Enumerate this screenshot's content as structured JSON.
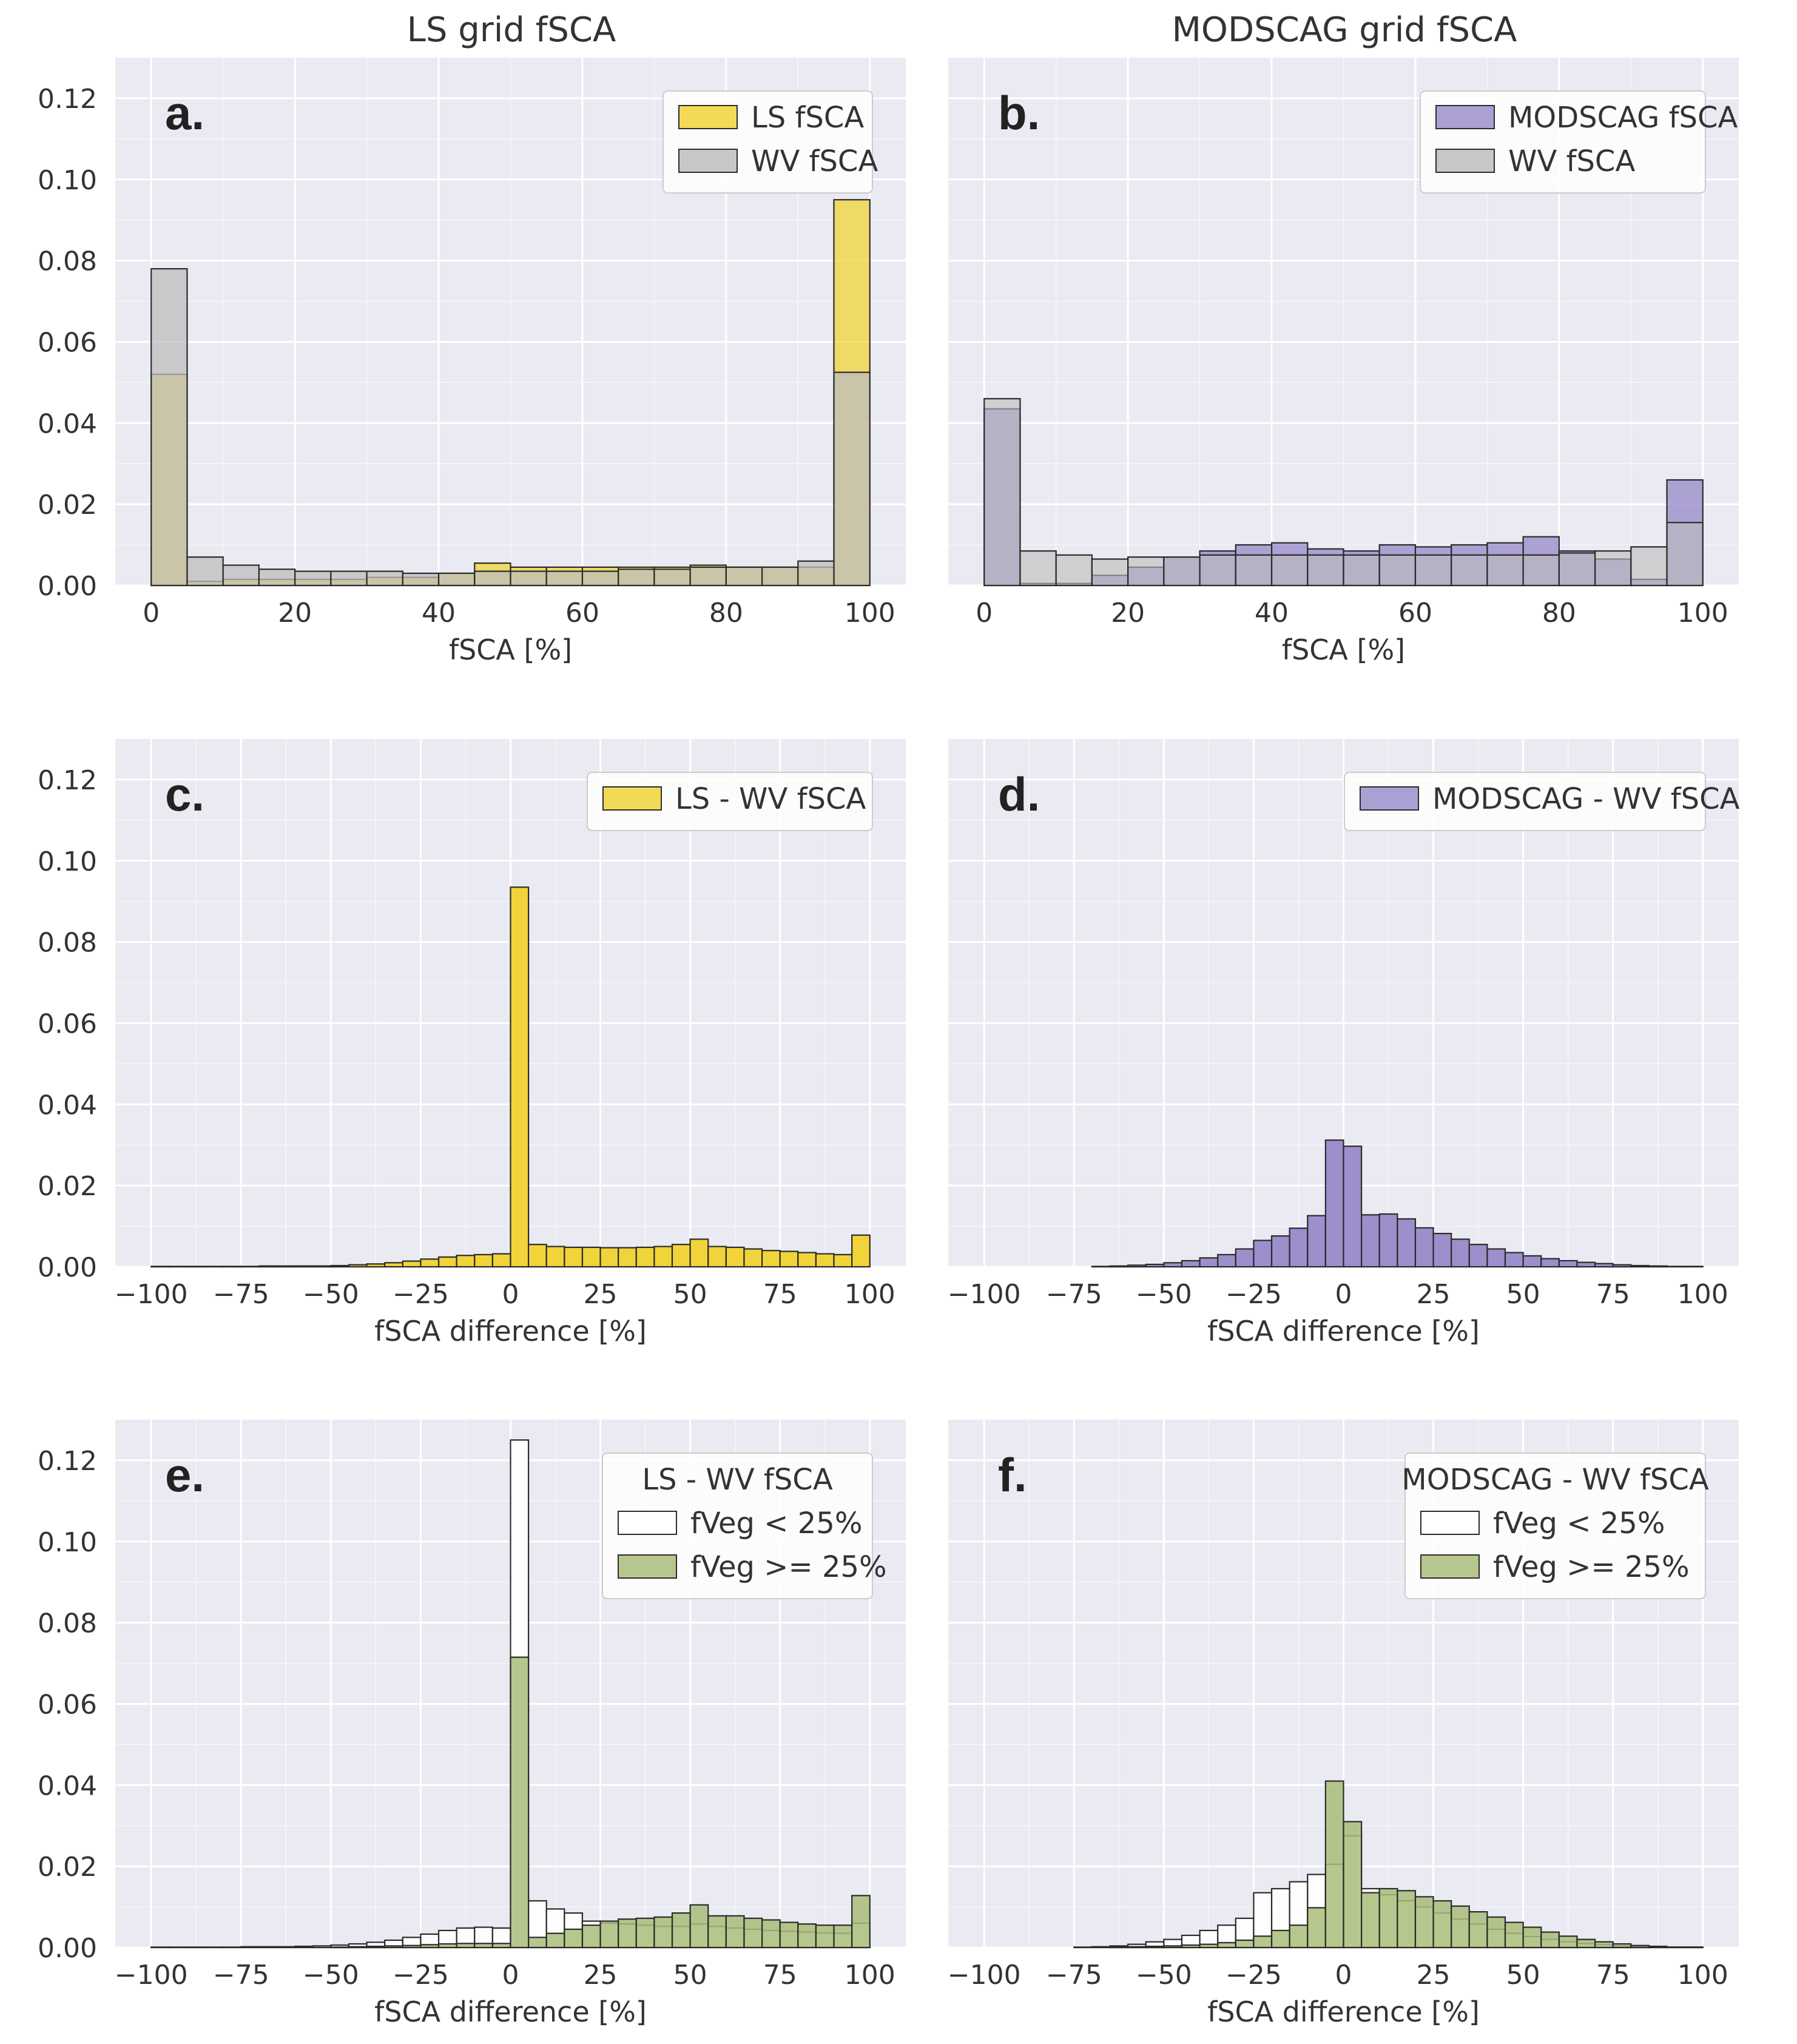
{
  "column_titles": [
    "LS grid fSCA",
    "MODSCAG grid fSCA"
  ],
  "colors": {
    "background": "#EAEAF2",
    "grid": "#FFFFFF",
    "ls": "#F0D43A",
    "wv": "#BDBDBD",
    "modscag": "#9C8FCB",
    "fveg_low": "#FFFFFF",
    "fveg_high": "#A8BD79",
    "edge": "#2B2B2B"
  },
  "chart_data": [
    {
      "id": "a",
      "panel_label": "a.",
      "type": "bar",
      "bin_edges": [
        0,
        5,
        10,
        15,
        20,
        25,
        30,
        35,
        40,
        45,
        50,
        55,
        60,
        65,
        70,
        75,
        80,
        85,
        90,
        95,
        100
      ],
      "xlim": [
        -5,
        105
      ],
      "ylim": [
        0,
        0.13
      ],
      "xticks": [
        0,
        20,
        40,
        60,
        80,
        100
      ],
      "xtick_labels": [
        "0",
        "20",
        "40",
        "60",
        "80",
        "100"
      ],
      "yticks": [
        0,
        0.02,
        0.04,
        0.06,
        0.08,
        0.1,
        0.12
      ],
      "ytick_labels": [
        "0.00",
        "0.02",
        "0.04",
        "0.06",
        "0.08",
        "0.10",
        "0.12"
      ],
      "xlabel": "fSCA [%]",
      "ylabel": "",
      "legend": {
        "placement": "top-right",
        "title": "",
        "entries": [
          {
            "label": "LS fSCA",
            "color_key": "ls"
          },
          {
            "label": "WV fSCA",
            "color_key": "wv"
          }
        ]
      },
      "series": [
        {
          "name": "LS fSCA",
          "color_key": "ls",
          "alpha": 0.75,
          "values": [
            0.052,
            0.001,
            0.0015,
            0.0015,
            0.0015,
            0.0015,
            0.002,
            0.002,
            0.003,
            0.0055,
            0.0045,
            0.0045,
            0.0045,
            0.0045,
            0.0045,
            0.005,
            0.0045,
            0.0045,
            0.0045,
            0.095
          ]
        },
        {
          "name": "WV fSCA",
          "color_key": "wv",
          "alpha": 0.75,
          "values": [
            0.078,
            0.007,
            0.005,
            0.004,
            0.0035,
            0.0035,
            0.0035,
            0.003,
            0.003,
            0.0035,
            0.0035,
            0.0035,
            0.0035,
            0.004,
            0.004,
            0.0045,
            0.0045,
            0.0045,
            0.006,
            0.0525
          ]
        }
      ]
    },
    {
      "id": "b",
      "panel_label": "b.",
      "type": "bar",
      "bin_edges": [
        0,
        5,
        10,
        15,
        20,
        25,
        30,
        35,
        40,
        45,
        50,
        55,
        60,
        65,
        70,
        75,
        80,
        85,
        90,
        95,
        100
      ],
      "xlim": [
        -5,
        105
      ],
      "ylim": [
        0,
        0.13
      ],
      "xticks": [
        0,
        20,
        40,
        60,
        80,
        100
      ],
      "xtick_labels": [
        "0",
        "20",
        "40",
        "60",
        "80",
        "100"
      ],
      "yticks": [
        0,
        0.02,
        0.04,
        0.06,
        0.08,
        0.1,
        0.12
      ],
      "ytick_labels": [],
      "xlabel": "fSCA [%]",
      "ylabel": "",
      "legend": {
        "placement": "top-right",
        "title": "",
        "entries": [
          {
            "label": "MODSCAG fSCA",
            "color_key": "modscag"
          },
          {
            "label": "WV fSCA",
            "color_key": "wv"
          }
        ]
      },
      "series": [
        {
          "name": "MODSCAG fSCA",
          "color_key": "modscag",
          "alpha": 0.8,
          "values": [
            0.0435,
            0.0005,
            0.0005,
            0.0025,
            0.0045,
            0.007,
            0.0085,
            0.01,
            0.0105,
            0.009,
            0.0085,
            0.01,
            0.0095,
            0.01,
            0.0105,
            0.012,
            0.0085,
            0.0065,
            0.0015,
            0.026
          ]
        },
        {
          "name": "WV fSCA",
          "color_key": "wv",
          "alpha": 0.6,
          "values": [
            0.046,
            0.0085,
            0.0075,
            0.0065,
            0.007,
            0.007,
            0.0075,
            0.0075,
            0.0075,
            0.0075,
            0.0075,
            0.0075,
            0.0075,
            0.0075,
            0.0075,
            0.0075,
            0.008,
            0.0085,
            0.0095,
            0.0155
          ]
        }
      ]
    },
    {
      "id": "c",
      "panel_label": "c.",
      "type": "bar",
      "bin_edges": [
        -100,
        -95,
        -90,
        -85,
        -80,
        -75,
        -70,
        -65,
        -60,
        -55,
        -50,
        -45,
        -40,
        -35,
        -30,
        -25,
        -20,
        -15,
        -10,
        -5,
        0,
        5,
        10,
        15,
        20,
        25,
        30,
        35,
        40,
        45,
        50,
        55,
        60,
        65,
        70,
        75,
        80,
        85,
        90,
        95,
        100
      ],
      "xlim": [
        -110,
        110
      ],
      "ylim": [
        0,
        0.13
      ],
      "xticks": [
        -100,
        -75,
        -50,
        -25,
        0,
        25,
        50,
        75,
        100
      ],
      "xtick_labels": [
        "−100",
        "−75",
        "−50",
        "−25",
        "0",
        "25",
        "50",
        "75",
        "100"
      ],
      "yticks": [
        0,
        0.02,
        0.04,
        0.06,
        0.08,
        0.1,
        0.12
      ],
      "ytick_labels": [
        "0.00",
        "0.02",
        "0.04",
        "0.06",
        "0.08",
        "0.10",
        "0.12"
      ],
      "xlabel": "fSCA difference [%]",
      "ylabel": "",
      "legend": {
        "placement": "top-right",
        "title": "",
        "entries": [
          {
            "label": "LS - WV fSCA",
            "color_key": "ls"
          }
        ]
      },
      "series": [
        {
          "name": "LS - WV fSCA",
          "color_key": "ls",
          "alpha": 1.0,
          "values": [
            0.0001,
            0.0001,
            0.0001,
            0.0001,
            0.0001,
            0.0001,
            0.0002,
            0.0002,
            0.0002,
            0.0002,
            0.0003,
            0.0005,
            0.0007,
            0.001,
            0.0014,
            0.0019,
            0.0024,
            0.0028,
            0.003,
            0.0032,
            0.0935,
            0.0055,
            0.005,
            0.0048,
            0.0048,
            0.0047,
            0.0047,
            0.0048,
            0.005,
            0.0055,
            0.0068,
            0.005,
            0.0048,
            0.0044,
            0.004,
            0.0038,
            0.0035,
            0.0032,
            0.003,
            0.0078
          ]
        }
      ]
    },
    {
      "id": "d",
      "panel_label": "d.",
      "type": "bar",
      "bin_edges": [
        -100,
        -95,
        -90,
        -85,
        -80,
        -75,
        -70,
        -65,
        -60,
        -55,
        -50,
        -45,
        -40,
        -35,
        -30,
        -25,
        -20,
        -15,
        -10,
        -5,
        0,
        5,
        10,
        15,
        20,
        25,
        30,
        35,
        40,
        45,
        50,
        55,
        60,
        65,
        70,
        75,
        80,
        85,
        90,
        95,
        100
      ],
      "xlim": [
        -110,
        110
      ],
      "ylim": [
        0,
        0.13
      ],
      "xticks": [
        -100,
        -75,
        -50,
        -25,
        0,
        25,
        50,
        75,
        100
      ],
      "xtick_labels": [
        "−100",
        "−75",
        "−50",
        "−25",
        "0",
        "25",
        "50",
        "75",
        "100"
      ],
      "yticks": [
        0,
        0.02,
        0.04,
        0.06,
        0.08,
        0.1,
        0.12
      ],
      "ytick_labels": [],
      "xlabel": "fSCA difference [%]",
      "ylabel": "",
      "legend": {
        "placement": "top-right",
        "title": "",
        "entries": [
          {
            "label": "MODSCAG - WV fSCA",
            "color_key": "modscag"
          }
        ]
      },
      "series": [
        {
          "name": "MODSCAG - WV fSCA",
          "color_key": "modscag",
          "alpha": 1.0,
          "values": [
            0,
            0,
            0,
            0,
            0,
            0,
            0.0001,
            0.0002,
            0.0004,
            0.0006,
            0.001,
            0.0015,
            0.0022,
            0.003,
            0.0044,
            0.0065,
            0.0076,
            0.0095,
            0.0126,
            0.0312,
            0.0297,
            0.0128,
            0.013,
            0.0118,
            0.0096,
            0.0082,
            0.0068,
            0.0055,
            0.0044,
            0.0035,
            0.0027,
            0.002,
            0.0015,
            0.0011,
            0.0008,
            0.0005,
            0.0003,
            0.0002,
            0.0001,
            0.0001
          ]
        }
      ]
    },
    {
      "id": "e",
      "panel_label": "e.",
      "type": "bar",
      "bin_edges": [
        -100,
        -95,
        -90,
        -85,
        -80,
        -75,
        -70,
        -65,
        -60,
        -55,
        -50,
        -45,
        -40,
        -35,
        -30,
        -25,
        -20,
        -15,
        -10,
        -5,
        0,
        5,
        10,
        15,
        20,
        25,
        30,
        35,
        40,
        45,
        50,
        55,
        60,
        65,
        70,
        75,
        80,
        85,
        90,
        95,
        100
      ],
      "xlim": [
        -110,
        110
      ],
      "ylim": [
        0,
        0.13
      ],
      "xticks": [
        -100,
        -75,
        -50,
        -25,
        0,
        25,
        50,
        75,
        100
      ],
      "xtick_labels": [
        "−100",
        "−75",
        "−50",
        "−25",
        "0",
        "25",
        "50",
        "75",
        "100"
      ],
      "yticks": [
        0,
        0.02,
        0.04,
        0.06,
        0.08,
        0.1,
        0.12
      ],
      "ytick_labels": [
        "0.00",
        "0.02",
        "0.04",
        "0.06",
        "0.08",
        "0.10",
        "0.12"
      ],
      "xlabel": "fSCA difference [%]",
      "ylabel": "",
      "legend": {
        "placement": "top-right",
        "title": "LS - WV fSCA",
        "entries": [
          {
            "label": "fVeg < 25%",
            "color_key": "fveg_low"
          },
          {
            "label": "fVeg >= 25%",
            "color_key": "fveg_high"
          }
        ]
      },
      "series": [
        {
          "name": "fVeg < 25%",
          "color_key": "fveg_low",
          "alpha": 0.9,
          "values": [
            0.0001,
            0.0001,
            0.0001,
            0.0001,
            0.0001,
            0.0002,
            0.0002,
            0.0002,
            0.0003,
            0.0004,
            0.0006,
            0.0009,
            0.0013,
            0.0018,
            0.0025,
            0.0033,
            0.0042,
            0.0048,
            0.005,
            0.0048,
            0.125,
            0.0115,
            0.0095,
            0.0085,
            0.0065,
            0.006,
            0.0058,
            0.0055,
            0.0052,
            0.0052,
            0.0058,
            0.0052,
            0.0048,
            0.0045,
            0.0042,
            0.004,
            0.0038,
            0.0036,
            0.0035,
            0.006
          ]
        },
        {
          "name": "fVeg >= 25%",
          "color_key": "fveg_high",
          "alpha": 0.85,
          "values": [
            0,
            0,
            0,
            0,
            0,
            0,
            0,
            0,
            0,
            0,
            0.0001,
            0.0002,
            0.0003,
            0.0004,
            0.0005,
            0.0007,
            0.0009,
            0.001,
            0.001,
            0.001,
            0.0715,
            0.0025,
            0.0035,
            0.0045,
            0.0055,
            0.0065,
            0.007,
            0.0072,
            0.0075,
            0.0085,
            0.0105,
            0.0078,
            0.0078,
            0.0072,
            0.0068,
            0.0062,
            0.0058,
            0.0055,
            0.0055,
            0.0128
          ]
        }
      ]
    },
    {
      "id": "f",
      "panel_label": "f.",
      "type": "bar",
      "bin_edges": [
        -100,
        -95,
        -90,
        -85,
        -80,
        -75,
        -70,
        -65,
        -60,
        -55,
        -50,
        -45,
        -40,
        -35,
        -30,
        -25,
        -20,
        -15,
        -10,
        -5,
        0,
        5,
        10,
        15,
        20,
        25,
        30,
        35,
        40,
        45,
        50,
        55,
        60,
        65,
        70,
        75,
        80,
        85,
        90,
        95,
        100
      ],
      "xlim": [
        -110,
        110
      ],
      "ylim": [
        0,
        0.13
      ],
      "xticks": [
        -100,
        -75,
        -50,
        -25,
        0,
        25,
        50,
        75,
        100
      ],
      "xtick_labels": [
        "−100",
        "−75",
        "−50",
        "−25",
        "0",
        "25",
        "50",
        "75",
        "100"
      ],
      "yticks": [
        0,
        0.02,
        0.04,
        0.06,
        0.08,
        0.1,
        0.12
      ],
      "ytick_labels": [],
      "xlabel": "fSCA difference [%]",
      "ylabel": "",
      "legend": {
        "placement": "top-right",
        "title": "MODSCAG - WV fSCA",
        "entries": [
          {
            "label": "fVeg < 25%",
            "color_key": "fveg_low"
          },
          {
            "label": "fVeg >= 25%",
            "color_key": "fveg_high"
          }
        ]
      },
      "series": [
        {
          "name": "fVeg < 25%",
          "color_key": "fveg_low",
          "alpha": 0.9,
          "values": [
            0,
            0,
            0,
            0,
            0,
            0.0001,
            0.0002,
            0.0004,
            0.0008,
            0.0014,
            0.002,
            0.003,
            0.0042,
            0.0055,
            0.0072,
            0.0135,
            0.0145,
            0.0162,
            0.018,
            0.0205,
            0.0275,
            0.0145,
            0.013,
            0.0115,
            0.01,
            0.0085,
            0.007,
            0.0058,
            0.0045,
            0.0035,
            0.0027,
            0.002,
            0.0014,
            0.001,
            0.0007,
            0.0004,
            0.0003,
            0.0002,
            0.0001,
            0.0001
          ]
        },
        {
          "name": "fVeg >= 25%",
          "color_key": "fveg_high",
          "alpha": 0.85,
          "values": [
            0,
            0,
            0,
            0,
            0,
            0,
            0,
            0.0001,
            0.0002,
            0.0003,
            0.0004,
            0.0006,
            0.0008,
            0.0012,
            0.0018,
            0.0028,
            0.0042,
            0.0055,
            0.0098,
            0.041,
            0.031,
            0.0135,
            0.0145,
            0.014,
            0.0125,
            0.0115,
            0.0102,
            0.0088,
            0.0075,
            0.0062,
            0.005,
            0.0038,
            0.0028,
            0.002,
            0.0014,
            0.0009,
            0.0005,
            0.0003,
            0.0001,
            0.0001
          ]
        }
      ]
    }
  ]
}
